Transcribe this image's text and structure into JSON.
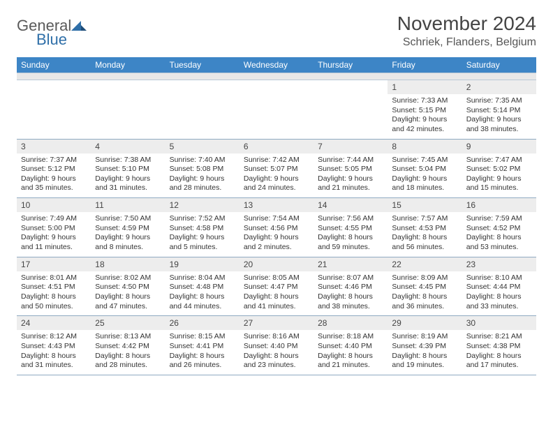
{
  "logo": {
    "text1": "General",
    "text2": "Blue"
  },
  "title": "November 2024",
  "location": "Schriek, Flanders, Belgium",
  "colors": {
    "header_bg": "#3d85c6",
    "header_text": "#ffffff",
    "daynum_bg": "#ededed",
    "border": "#8faac2",
    "logo_gray": "#5a5a5a",
    "logo_blue": "#2f6fa8"
  },
  "dayNames": [
    "Sunday",
    "Monday",
    "Tuesday",
    "Wednesday",
    "Thursday",
    "Friday",
    "Saturday"
  ],
  "weeks": [
    [
      {
        "n": "",
        "sr": "",
        "ss": "",
        "dl": ""
      },
      {
        "n": "",
        "sr": "",
        "ss": "",
        "dl": ""
      },
      {
        "n": "",
        "sr": "",
        "ss": "",
        "dl": ""
      },
      {
        "n": "",
        "sr": "",
        "ss": "",
        "dl": ""
      },
      {
        "n": "",
        "sr": "",
        "ss": "",
        "dl": ""
      },
      {
        "n": "1",
        "sr": "Sunrise: 7:33 AM",
        "ss": "Sunset: 5:15 PM",
        "dl": "Daylight: 9 hours and 42 minutes."
      },
      {
        "n": "2",
        "sr": "Sunrise: 7:35 AM",
        "ss": "Sunset: 5:14 PM",
        "dl": "Daylight: 9 hours and 38 minutes."
      }
    ],
    [
      {
        "n": "3",
        "sr": "Sunrise: 7:37 AM",
        "ss": "Sunset: 5:12 PM",
        "dl": "Daylight: 9 hours and 35 minutes."
      },
      {
        "n": "4",
        "sr": "Sunrise: 7:38 AM",
        "ss": "Sunset: 5:10 PM",
        "dl": "Daylight: 9 hours and 31 minutes."
      },
      {
        "n": "5",
        "sr": "Sunrise: 7:40 AM",
        "ss": "Sunset: 5:08 PM",
        "dl": "Daylight: 9 hours and 28 minutes."
      },
      {
        "n": "6",
        "sr": "Sunrise: 7:42 AM",
        "ss": "Sunset: 5:07 PM",
        "dl": "Daylight: 9 hours and 24 minutes."
      },
      {
        "n": "7",
        "sr": "Sunrise: 7:44 AM",
        "ss": "Sunset: 5:05 PM",
        "dl": "Daylight: 9 hours and 21 minutes."
      },
      {
        "n": "8",
        "sr": "Sunrise: 7:45 AM",
        "ss": "Sunset: 5:04 PM",
        "dl": "Daylight: 9 hours and 18 minutes."
      },
      {
        "n": "9",
        "sr": "Sunrise: 7:47 AM",
        "ss": "Sunset: 5:02 PM",
        "dl": "Daylight: 9 hours and 15 minutes."
      }
    ],
    [
      {
        "n": "10",
        "sr": "Sunrise: 7:49 AM",
        "ss": "Sunset: 5:00 PM",
        "dl": "Daylight: 9 hours and 11 minutes."
      },
      {
        "n": "11",
        "sr": "Sunrise: 7:50 AM",
        "ss": "Sunset: 4:59 PM",
        "dl": "Daylight: 9 hours and 8 minutes."
      },
      {
        "n": "12",
        "sr": "Sunrise: 7:52 AM",
        "ss": "Sunset: 4:58 PM",
        "dl": "Daylight: 9 hours and 5 minutes."
      },
      {
        "n": "13",
        "sr": "Sunrise: 7:54 AM",
        "ss": "Sunset: 4:56 PM",
        "dl": "Daylight: 9 hours and 2 minutes."
      },
      {
        "n": "14",
        "sr": "Sunrise: 7:56 AM",
        "ss": "Sunset: 4:55 PM",
        "dl": "Daylight: 8 hours and 59 minutes."
      },
      {
        "n": "15",
        "sr": "Sunrise: 7:57 AM",
        "ss": "Sunset: 4:53 PM",
        "dl": "Daylight: 8 hours and 56 minutes."
      },
      {
        "n": "16",
        "sr": "Sunrise: 7:59 AM",
        "ss": "Sunset: 4:52 PM",
        "dl": "Daylight: 8 hours and 53 minutes."
      }
    ],
    [
      {
        "n": "17",
        "sr": "Sunrise: 8:01 AM",
        "ss": "Sunset: 4:51 PM",
        "dl": "Daylight: 8 hours and 50 minutes."
      },
      {
        "n": "18",
        "sr": "Sunrise: 8:02 AM",
        "ss": "Sunset: 4:50 PM",
        "dl": "Daylight: 8 hours and 47 minutes."
      },
      {
        "n": "19",
        "sr": "Sunrise: 8:04 AM",
        "ss": "Sunset: 4:48 PM",
        "dl": "Daylight: 8 hours and 44 minutes."
      },
      {
        "n": "20",
        "sr": "Sunrise: 8:05 AM",
        "ss": "Sunset: 4:47 PM",
        "dl": "Daylight: 8 hours and 41 minutes."
      },
      {
        "n": "21",
        "sr": "Sunrise: 8:07 AM",
        "ss": "Sunset: 4:46 PM",
        "dl": "Daylight: 8 hours and 38 minutes."
      },
      {
        "n": "22",
        "sr": "Sunrise: 8:09 AM",
        "ss": "Sunset: 4:45 PM",
        "dl": "Daylight: 8 hours and 36 minutes."
      },
      {
        "n": "23",
        "sr": "Sunrise: 8:10 AM",
        "ss": "Sunset: 4:44 PM",
        "dl": "Daylight: 8 hours and 33 minutes."
      }
    ],
    [
      {
        "n": "24",
        "sr": "Sunrise: 8:12 AM",
        "ss": "Sunset: 4:43 PM",
        "dl": "Daylight: 8 hours and 31 minutes."
      },
      {
        "n": "25",
        "sr": "Sunrise: 8:13 AM",
        "ss": "Sunset: 4:42 PM",
        "dl": "Daylight: 8 hours and 28 minutes."
      },
      {
        "n": "26",
        "sr": "Sunrise: 8:15 AM",
        "ss": "Sunset: 4:41 PM",
        "dl": "Daylight: 8 hours and 26 minutes."
      },
      {
        "n": "27",
        "sr": "Sunrise: 8:16 AM",
        "ss": "Sunset: 4:40 PM",
        "dl": "Daylight: 8 hours and 23 minutes."
      },
      {
        "n": "28",
        "sr": "Sunrise: 8:18 AM",
        "ss": "Sunset: 4:40 PM",
        "dl": "Daylight: 8 hours and 21 minutes."
      },
      {
        "n": "29",
        "sr": "Sunrise: 8:19 AM",
        "ss": "Sunset: 4:39 PM",
        "dl": "Daylight: 8 hours and 19 minutes."
      },
      {
        "n": "30",
        "sr": "Sunrise: 8:21 AM",
        "ss": "Sunset: 4:38 PM",
        "dl": "Daylight: 8 hours and 17 minutes."
      }
    ]
  ]
}
